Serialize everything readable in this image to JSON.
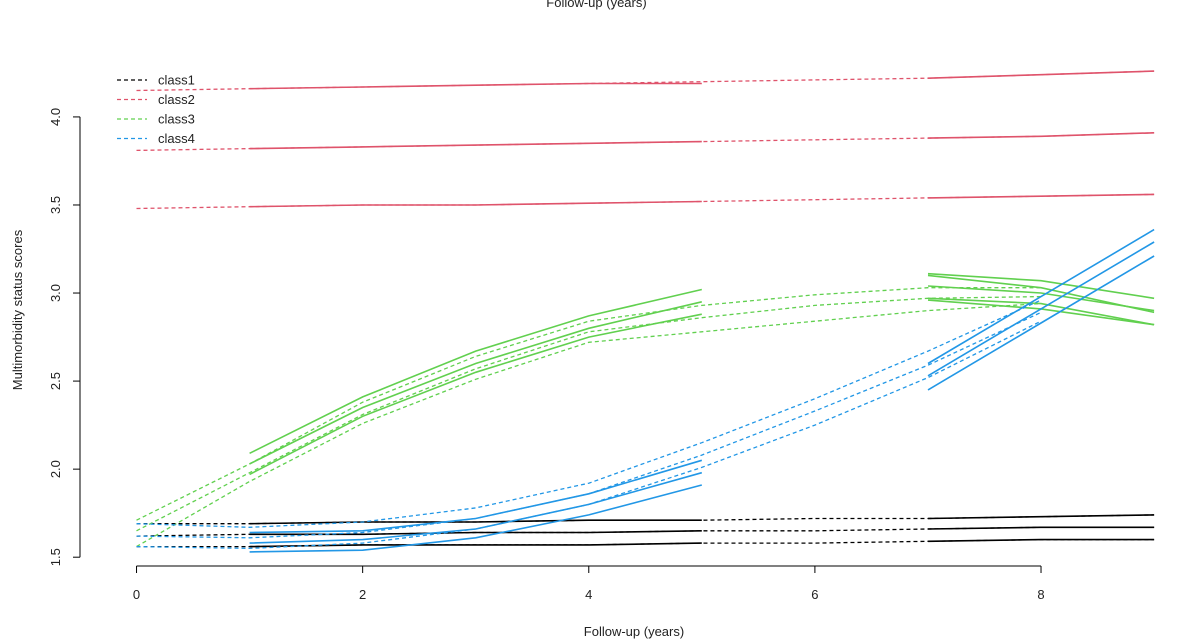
{
  "chart_data": {
    "type": "line",
    "top_caption": "Follow-up (years)",
    "xlabel": "Follow-up (years)",
    "ylabel": "Multimorbidity status scores",
    "xlim": [
      -0.5,
      9.3
    ],
    "ylim": [
      1.45,
      4.38
    ],
    "x_ticks": [
      0,
      2,
      4,
      6,
      8
    ],
    "x_tick_labels": [
      "0",
      "2",
      "4",
      "6",
      "8"
    ],
    "y_ticks": [
      1.5,
      2.0,
      2.5,
      3.0,
      3.5,
      4.0
    ],
    "y_tick_labels": [
      "1.5",
      "2.0",
      "2.5",
      "3.0",
      "3.5",
      "4.0"
    ],
    "grid": false,
    "legend_position": "top-left",
    "legend": [
      {
        "label": "class1",
        "color": "#000000"
      },
      {
        "label": "class2",
        "color": "#DF536B"
      },
      {
        "label": "class3",
        "color": "#61D04F"
      },
      {
        "label": "class4",
        "color": "#2297E6"
      }
    ],
    "series": [
      {
        "class": "class1",
        "color": "#000000",
        "style": "dashed",
        "x": [
          0,
          1,
          2,
          3,
          4,
          5,
          6,
          7,
          8,
          9
        ],
        "y": [
          1.69,
          1.69,
          1.7,
          1.7,
          1.71,
          1.71,
          1.72,
          1.72,
          1.73,
          1.74
        ]
      },
      {
        "class": "class1",
        "color": "#000000",
        "style": "dashed",
        "x": [
          0,
          1,
          2,
          3,
          4,
          5,
          6,
          7,
          8,
          9
        ],
        "y": [
          1.62,
          1.63,
          1.63,
          1.64,
          1.64,
          1.65,
          1.65,
          1.66,
          1.67,
          1.67
        ]
      },
      {
        "class": "class1",
        "color": "#000000",
        "style": "dashed",
        "x": [
          0,
          1,
          2,
          3,
          4,
          5,
          6,
          7,
          8,
          9
        ],
        "y": [
          1.56,
          1.56,
          1.57,
          1.57,
          1.57,
          1.58,
          1.58,
          1.59,
          1.6,
          1.6
        ]
      },
      {
        "class": "class1",
        "color": "#000000",
        "style": "solid",
        "x": [
          1,
          2,
          3,
          4,
          5
        ],
        "y": [
          1.69,
          1.7,
          1.7,
          1.71,
          1.71
        ]
      },
      {
        "class": "class1",
        "color": "#000000",
        "style": "solid",
        "x": [
          1,
          2,
          3,
          4,
          5
        ],
        "y": [
          1.63,
          1.63,
          1.64,
          1.64,
          1.65
        ]
      },
      {
        "class": "class1",
        "color": "#000000",
        "style": "solid",
        "x": [
          1,
          2,
          3,
          4,
          5
        ],
        "y": [
          1.56,
          1.57,
          1.57,
          1.57,
          1.58
        ]
      },
      {
        "class": "class1",
        "color": "#000000",
        "style": "solid",
        "x": [
          7,
          8,
          9
        ],
        "y": [
          1.72,
          1.73,
          1.74
        ]
      },
      {
        "class": "class1",
        "color": "#000000",
        "style": "solid",
        "x": [
          7,
          8,
          9
        ],
        "y": [
          1.66,
          1.67,
          1.67
        ]
      },
      {
        "class": "class1",
        "color": "#000000",
        "style": "solid",
        "x": [
          7,
          8,
          9
        ],
        "y": [
          1.59,
          1.6,
          1.6
        ]
      },
      {
        "class": "class2",
        "color": "#DF536B",
        "style": "dashed",
        "x": [
          0,
          1,
          2,
          3,
          4,
          5,
          6,
          7,
          8,
          9
        ],
        "y": [
          4.15,
          4.16,
          4.17,
          4.18,
          4.19,
          4.2,
          4.21,
          4.22,
          4.24,
          4.26
        ]
      },
      {
        "class": "class2",
        "color": "#DF536B",
        "style": "dashed",
        "x": [
          0,
          1,
          2,
          3,
          4,
          5,
          6,
          7,
          8,
          9
        ],
        "y": [
          3.81,
          3.82,
          3.83,
          3.84,
          3.85,
          3.86,
          3.87,
          3.88,
          3.89,
          3.91
        ]
      },
      {
        "class": "class2",
        "color": "#DF536B",
        "style": "dashed",
        "x": [
          0,
          1,
          2,
          3,
          4,
          5,
          6,
          7,
          8,
          9
        ],
        "y": [
          3.48,
          3.49,
          3.5,
          3.5,
          3.51,
          3.52,
          3.53,
          3.54,
          3.55,
          3.56
        ]
      },
      {
        "class": "class2",
        "color": "#DF536B",
        "style": "solid",
        "x": [
          1,
          2,
          3,
          4,
          5
        ],
        "y": [
          4.16,
          4.17,
          4.18,
          4.19,
          4.19
        ]
      },
      {
        "class": "class2",
        "color": "#DF536B",
        "style": "solid",
        "x": [
          1,
          2,
          3,
          4,
          5
        ],
        "y": [
          3.82,
          3.83,
          3.84,
          3.85,
          3.86
        ]
      },
      {
        "class": "class2",
        "color": "#DF536B",
        "style": "solid",
        "x": [
          1,
          2,
          3,
          4,
          5
        ],
        "y": [
          3.49,
          3.5,
          3.5,
          3.51,
          3.52
        ]
      },
      {
        "class": "class2",
        "color": "#DF536B",
        "style": "solid",
        "x": [
          7,
          8,
          9
        ],
        "y": [
          4.22,
          4.24,
          4.26
        ]
      },
      {
        "class": "class2",
        "color": "#DF536B",
        "style": "solid",
        "x": [
          7,
          8,
          9
        ],
        "y": [
          3.88,
          3.89,
          3.91
        ]
      },
      {
        "class": "class2",
        "color": "#DF536B",
        "style": "solid",
        "x": [
          7,
          8,
          9
        ],
        "y": [
          3.54,
          3.55,
          3.56
        ]
      },
      {
        "class": "class3",
        "color": "#61D04F",
        "style": "dashed",
        "x": [
          0,
          1,
          2,
          3,
          4,
          5,
          6,
          7,
          8
        ],
        "y": [
          1.71,
          2.03,
          2.38,
          2.64,
          2.84,
          2.93,
          2.99,
          3.03,
          3.03
        ]
      },
      {
        "class": "class3",
        "color": "#61D04F",
        "style": "dashed",
        "x": [
          0,
          1,
          2,
          3,
          4,
          5,
          6,
          7,
          8
        ],
        "y": [
          1.65,
          1.98,
          2.31,
          2.57,
          2.78,
          2.86,
          2.93,
          2.97,
          2.98
        ]
      },
      {
        "class": "class3",
        "color": "#61D04F",
        "style": "dashed",
        "x": [
          0,
          1,
          2,
          3,
          4,
          5,
          6,
          7,
          8
        ],
        "y": [
          1.56,
          1.93,
          2.26,
          2.51,
          2.72,
          2.78,
          2.84,
          2.9,
          2.94
        ]
      },
      {
        "class": "class3",
        "color": "#61D04F",
        "style": "solid",
        "x": [
          1,
          2,
          3,
          4,
          5
        ],
        "y": [
          2.09,
          2.41,
          2.67,
          2.87,
          3.02
        ]
      },
      {
        "class": "class3",
        "color": "#61D04F",
        "style": "solid",
        "x": [
          1,
          2,
          3,
          4,
          5
        ],
        "y": [
          2.03,
          2.35,
          2.6,
          2.8,
          2.95
        ]
      },
      {
        "class": "class3",
        "color": "#61D04F",
        "style": "solid",
        "x": [
          1,
          2,
          3,
          4,
          5
        ],
        "y": [
          1.97,
          2.3,
          2.55,
          2.75,
          2.88
        ]
      },
      {
        "class": "class3",
        "color": "#61D04F",
        "style": "solid",
        "x": [
          7,
          8,
          9
        ],
        "y": [
          3.11,
          3.07,
          2.97
        ]
      },
      {
        "class": "class3",
        "color": "#61D04F",
        "style": "solid",
        "x": [
          7,
          8,
          9
        ],
        "y": [
          3.04,
          3.0,
          2.9
        ]
      },
      {
        "class": "class3",
        "color": "#61D04F",
        "style": "solid",
        "x": [
          7,
          8,
          9
        ],
        "y": [
          2.96,
          2.91,
          2.82
        ]
      },
      {
        "class": "class3",
        "color": "#61D04F",
        "style": "solid",
        "x": [
          7,
          8,
          9
        ],
        "y": [
          3.1,
          3.03,
          2.89
        ]
      },
      {
        "class": "class3",
        "color": "#61D04F",
        "style": "solid",
        "x": [
          7,
          8,
          9
        ],
        "y": [
          2.97,
          2.94,
          2.82
        ]
      },
      {
        "class": "class4",
        "color": "#2297E6",
        "style": "dashed",
        "x": [
          0,
          1,
          2,
          3,
          4,
          5,
          6,
          7,
          8
        ],
        "y": [
          1.69,
          1.67,
          1.7,
          1.78,
          1.92,
          2.15,
          2.4,
          2.67,
          2.96
        ]
      },
      {
        "class": "class4",
        "color": "#2297E6",
        "style": "dashed",
        "x": [
          0,
          1,
          2,
          3,
          4,
          5,
          6,
          7,
          8
        ],
        "y": [
          1.62,
          1.61,
          1.64,
          1.72,
          1.86,
          2.08,
          2.33,
          2.59,
          2.89
        ]
      },
      {
        "class": "class4",
        "color": "#2297E6",
        "style": "dashed",
        "x": [
          0,
          1,
          2,
          3,
          4,
          5,
          6,
          7,
          8
        ],
        "y": [
          1.56,
          1.55,
          1.58,
          1.66,
          1.8,
          2.01,
          2.25,
          2.52,
          2.84
        ]
      },
      {
        "class": "class4",
        "color": "#2297E6",
        "style": "solid",
        "x": [
          1,
          2,
          3,
          4,
          5
        ],
        "y": [
          1.64,
          1.65,
          1.72,
          1.86,
          2.05
        ]
      },
      {
        "class": "class4",
        "color": "#2297E6",
        "style": "solid",
        "x": [
          1,
          2,
          3,
          4,
          5
        ],
        "y": [
          1.58,
          1.6,
          1.66,
          1.8,
          1.98
        ]
      },
      {
        "class": "class4",
        "color": "#2297E6",
        "style": "solid",
        "x": [
          1,
          2,
          3,
          4,
          5
        ],
        "y": [
          1.53,
          1.54,
          1.61,
          1.74,
          1.91
        ]
      },
      {
        "class": "class4",
        "color": "#2297E6",
        "style": "solid",
        "x": [
          7,
          8,
          9
        ],
        "y": [
          2.6,
          2.98,
          3.36
        ]
      },
      {
        "class": "class4",
        "color": "#2297E6",
        "style": "solid",
        "x": [
          7,
          8,
          9
        ],
        "y": [
          2.53,
          2.91,
          3.29
        ]
      },
      {
        "class": "class4",
        "color": "#2297E6",
        "style": "solid",
        "x": [
          7,
          8,
          9
        ],
        "y": [
          2.45,
          2.83,
          3.21
        ]
      }
    ]
  }
}
